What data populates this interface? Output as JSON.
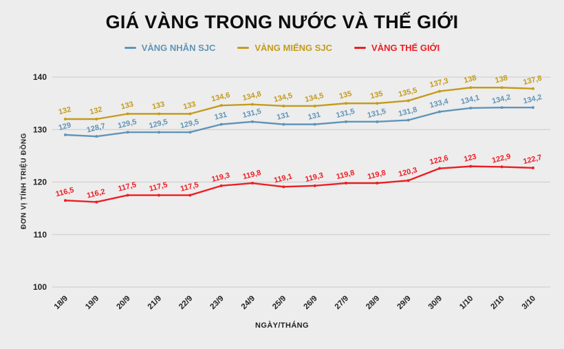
{
  "page": {
    "title": "GIÁ VÀNG TRONG NƯỚC VÀ THẾ GIỚI",
    "background_color": "#ededed"
  },
  "chart_data": {
    "type": "line",
    "title": "GIÁ VÀNG TRONG NƯỚC VÀ THẾ GIỚI",
    "xlabel": "NGÀY/THÁNG",
    "ylabel": "ĐƠN VỊ TÍNH TRIỆU ĐỒNG",
    "ylim": [
      100,
      140
    ],
    "yticks": [
      100,
      110,
      120,
      130,
      140
    ],
    "grid": true,
    "legend_position": "top",
    "grid_color": "#c9c9c9",
    "categories": [
      "18/9",
      "19/9",
      "20/9",
      "21/9",
      "22/9",
      "23/9",
      "24/9",
      "25/9",
      "26/9",
      "27/9",
      "28/9",
      "29/9",
      "30/9",
      "1/10",
      "2/10",
      "3/10"
    ],
    "series": [
      {
        "id": "vang-nhan-sjc",
        "name": "VÀNG NHẪN SJC",
        "color": "#6094b8",
        "values": [
          129,
          128.7,
          129.5,
          129.5,
          129.5,
          131,
          131.5,
          131,
          131,
          131.5,
          131.5,
          131.8,
          133.4,
          134.1,
          134.2,
          134.2
        ],
        "labels": [
          "129",
          "128,7",
          "129,5",
          "129,5",
          "129,5",
          "131",
          "131,5",
          "131",
          "131",
          "131,5",
          "131,5",
          "131,8",
          "133,4",
          "134,1",
          "134,2",
          "134,2"
        ]
      },
      {
        "id": "vang-mieng-sjc",
        "name": "VÀNG MIẾNG SJC",
        "color": "#c49b1c",
        "values": [
          132,
          132,
          133,
          133,
          133,
          134.6,
          134.8,
          134.5,
          134.5,
          135,
          135,
          135.5,
          137.3,
          138,
          138,
          137.8
        ],
        "labels": [
          "132",
          "132",
          "133",
          "133",
          "133",
          "134,6",
          "134,8",
          "134,5",
          "134,5",
          "135",
          "135",
          "135,5",
          "137,3",
          "138",
          "138",
          "137,8"
        ]
      },
      {
        "id": "vang-the-gioi",
        "name": "VÀNG THẾ GIỚI",
        "color": "#ee1d23",
        "values": [
          116.5,
          116.2,
          117.5,
          117.5,
          117.5,
          119.3,
          119.8,
          119.1,
          119.3,
          119.8,
          119.8,
          120.3,
          122.6,
          123,
          122.9,
          122.7
        ],
        "labels": [
          "116,5",
          "116,2",
          "117,5",
          "117,5",
          "117,5",
          "119,3",
          "119,8",
          "119,1",
          "119,3",
          "119,8",
          "119,8",
          "120,3",
          "122,6",
          "123",
          "122,9",
          "122,7"
        ]
      }
    ]
  }
}
